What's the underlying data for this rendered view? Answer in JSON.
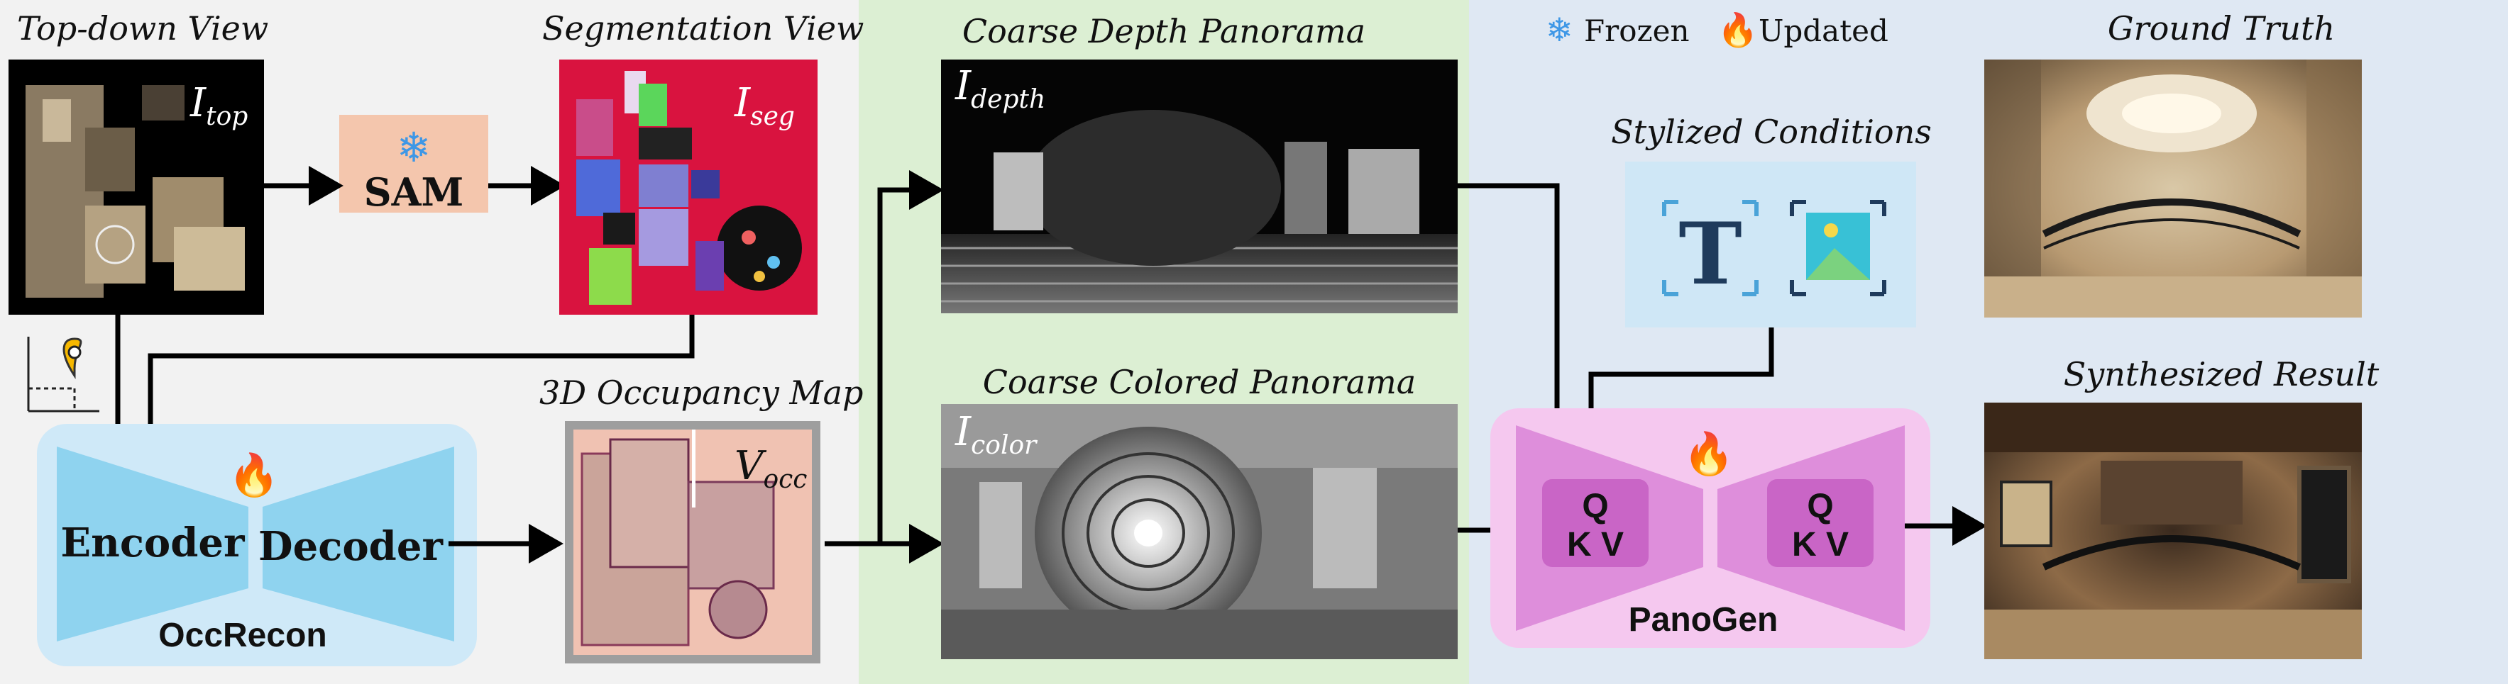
{
  "legend": {
    "frozen_label": "Frozen",
    "updated_label": "Updated"
  },
  "topdown": {
    "title": "Top-down View",
    "symbol": "I",
    "subscript": "top"
  },
  "sam": {
    "label": "SAM"
  },
  "segmentation": {
    "title": "Segmentation View",
    "symbol": "I",
    "subscript": "seg"
  },
  "occrecon": {
    "name": "OccRecon",
    "encoder_label": "Encoder",
    "decoder_label": "Decoder"
  },
  "occupancy": {
    "title": "3D Occupancy Map",
    "symbol": "V",
    "subscript": "occ"
  },
  "depth_panorama": {
    "title": "Coarse Depth Panorama",
    "symbol": "I",
    "subscript": "depth"
  },
  "color_panorama": {
    "title": "Coarse Colored Panorama",
    "symbol": "I",
    "subscript": "color"
  },
  "conditions": {
    "title": "Stylized Conditions"
  },
  "panogen": {
    "name": "PanoGen",
    "left_qkv_top": "Q",
    "left_qkv_bottom": "K V",
    "right_qkv_top": "Q",
    "right_qkv_bottom": "K V"
  },
  "ground_truth": {
    "title": "Ground Truth"
  },
  "synthesized": {
    "title": "Synthesized Result"
  },
  "colors": {
    "green_panel": "#dcefd3",
    "blue_panel": "#dfe8f3",
    "occrecon_bg": "#cfe9f8",
    "occrecon_trap": "#8fd3ef",
    "sam_box": "#f4c6ad",
    "panogen_bg": "#f5c8ef",
    "panogen_trap": "#de8edb",
    "qkv_box": "#c965c6",
    "seg_bg": "#d9133f",
    "frozen_icon": "#3e97e6",
    "updated_icon": "#f08a1c"
  }
}
